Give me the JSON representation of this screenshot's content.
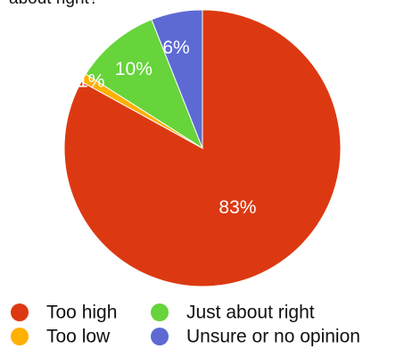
{
  "header_fragment": "about right?",
  "chart_data": {
    "type": "pie",
    "slices": [
      {
        "label": "Too high",
        "value": 83,
        "display": "83%",
        "color": "#dc3912"
      },
      {
        "label": "Too low",
        "value": 1,
        "display": "1%",
        "color": "#ffb000"
      },
      {
        "label": "Just about right",
        "value": 10,
        "display": "10%",
        "color": "#66d43a"
      },
      {
        "label": "Unsure or no opinion",
        "value": 6,
        "display": "6%",
        "color": "#5d6ad4"
      }
    ],
    "slice_order_clockwise_from_top": [
      "Too high",
      "Too low",
      "Just about right",
      "Unsure or no opinion"
    ],
    "legend": {
      "placement": "bottom",
      "items": [
        {
          "label": "Too high",
          "color": "#dc3912"
        },
        {
          "label": "Just about right",
          "color": "#66d43a"
        },
        {
          "label": "Too low",
          "color": "#ffb000"
        },
        {
          "label": "Unsure or no opinion",
          "color": "#5d6ad4"
        }
      ]
    }
  }
}
